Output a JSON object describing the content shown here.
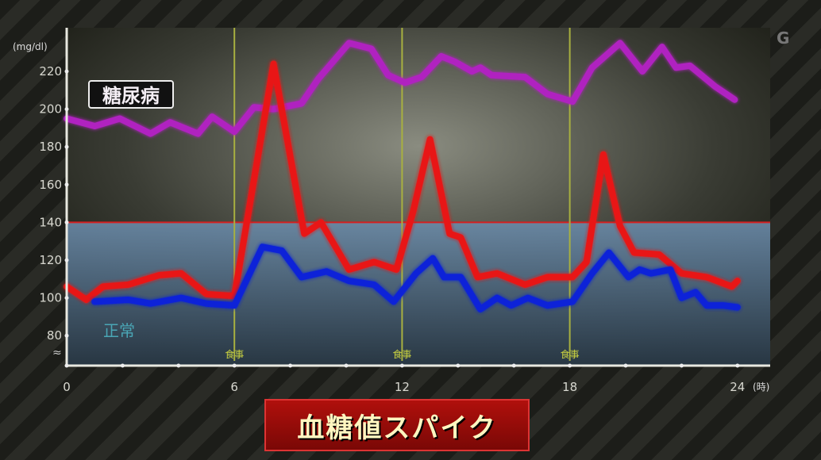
{
  "chart_data": {
    "type": "line",
    "title": "",
    "xlabel": "(時)",
    "ylabel": "(mg/dl)",
    "xlim": [
      0,
      24
    ],
    "ylim": [
      64,
      234
    ],
    "x_ticks": [
      0,
      6,
      12,
      18,
      24
    ],
    "x_tick_labels": [
      "0",
      "6",
      "12",
      "18",
      "24"
    ],
    "y_ticks": [
      80,
      100,
      120,
      140,
      160,
      180,
      200,
      220
    ],
    "y_tick_labels": [
      "80",
      "100",
      "120",
      "140",
      "160",
      "180",
      "200",
      "220"
    ],
    "threshold": {
      "value": 140,
      "color": "#d42020"
    },
    "normal_region": {
      "from": 64,
      "to": 140,
      "label": "正常",
      "color": "#5b7f9c"
    },
    "meal_markers": [
      {
        "x": 6,
        "label": "食事"
      },
      {
        "x": 12,
        "label": "食事"
      },
      {
        "x": 18,
        "label": "食事"
      }
    ],
    "grid": false,
    "series": [
      {
        "name": "糖尿病",
        "color": "#b020c0",
        "x": [
          0,
          1.0,
          1.9,
          3.0,
          3.7,
          4.7,
          5.2,
          6.0,
          6.7,
          7.4,
          8.4,
          9.0,
          10.1,
          10.9,
          11.5,
          12.1,
          12.7,
          13.4,
          13.9,
          14.5,
          14.8,
          15.2,
          16.4,
          17.2,
          18.1,
          18.8,
          19.8,
          20.6,
          21.3,
          21.8,
          22.3,
          23.2,
          23.9
        ],
        "y": [
          195,
          191,
          195,
          187,
          193,
          187,
          196,
          188,
          201,
          200,
          203,
          216,
          235,
          232,
          218,
          214,
          217,
          228,
          225,
          220,
          222,
          218,
          217,
          208,
          204,
          222,
          235,
          220,
          233,
          222,
          223,
          212,
          205
        ]
      },
      {
        "color": "#e81818",
        "x": [
          0,
          0.7,
          1.3,
          2.2,
          3.3,
          4.1,
          5.0,
          6.0,
          7.4,
          8.5,
          9.1,
          10.1,
          11.0,
          11.8,
          12.4,
          13.0,
          13.7,
          14.1,
          14.7,
          15.4,
          16.4,
          17.2,
          18.1,
          18.6,
          19.2,
          19.8,
          20.3,
          21.2,
          22.0,
          22.9,
          23.8,
          24.0
        ],
        "y": [
          106,
          99,
          106,
          107,
          112,
          113,
          102,
          101,
          224,
          134,
          140,
          115,
          119,
          115,
          146,
          184,
          134,
          132,
          111,
          113,
          107,
          111,
          111,
          119,
          176,
          138,
          124,
          123,
          113,
          111,
          106,
          109
        ]
      },
      {
        "color": "#1020d8",
        "x": [
          1.0,
          2.2,
          3.0,
          4.1,
          5.0,
          6.0,
          7.0,
          7.7,
          8.4,
          9.3,
          10.1,
          11.0,
          11.7,
          12.5,
          13.1,
          13.5,
          14.1,
          14.8,
          15.4,
          15.9,
          16.5,
          17.2,
          18.1,
          18.8,
          19.4,
          20.1,
          20.5,
          20.9,
          21.6,
          22.0,
          22.5,
          22.9,
          23.5,
          24.0
        ],
        "y": [
          98,
          99,
          97,
          100,
          97,
          96,
          127,
          125,
          111,
          114,
          109,
          107,
          98,
          113,
          121,
          111,
          111,
          94,
          100,
          96,
          100,
          96,
          98,
          113,
          124,
          111,
          115,
          113,
          115,
          100,
          103,
          96,
          96,
          95
        ]
      }
    ]
  },
  "logo": "G",
  "caption": "血糖値スパイク"
}
